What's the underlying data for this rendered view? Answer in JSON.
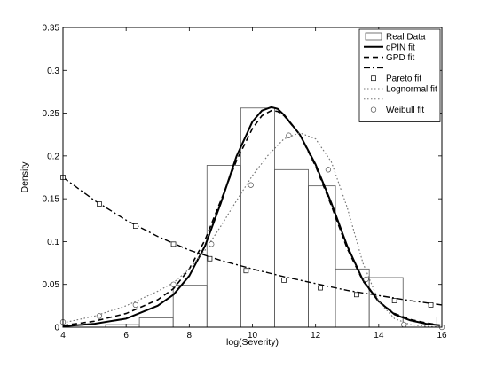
{
  "chart_data": {
    "type": "line",
    "title": "",
    "xlabel": "log(Severity)",
    "ylabel": "Density",
    "xlim": [
      4,
      16
    ],
    "ylim": [
      0,
      0.35
    ],
    "xticks": [
      "4",
      "6",
      "8",
      "10",
      "12",
      "14",
      "16"
    ],
    "yticks": [
      "0",
      "0.05",
      "0.1",
      "0.15",
      "0.2",
      "0.25",
      "0.3",
      "0.35"
    ],
    "grid": false,
    "legend_position": "top-right",
    "histogram": {
      "name": "Real Data",
      "bins": [
        {
          "x0": 5.35,
          "x1": 6.42,
          "value": 0.003
        },
        {
          "x0": 6.42,
          "x1": 7.49,
          "value": 0.011
        },
        {
          "x0": 7.49,
          "x1": 8.56,
          "value": 0.049
        },
        {
          "x0": 8.56,
          "x1": 9.63,
          "value": 0.189
        },
        {
          "x0": 9.63,
          "x1": 10.7,
          "value": 0.256
        },
        {
          "x0": 10.7,
          "x1": 11.77,
          "value": 0.184
        },
        {
          "x0": 11.77,
          "x1": 12.63,
          "value": 0.165
        },
        {
          "x0": 12.63,
          "x1": 13.7,
          "value": 0.068
        },
        {
          "x0": 13.7,
          "x1": 14.77,
          "value": 0.058
        },
        {
          "x0": 14.77,
          "x1": 15.84,
          "value": 0.012
        }
      ]
    },
    "series": [
      {
        "name": "dPIN fit",
        "style": "solid",
        "x": [
          4,
          5,
          6,
          7,
          7.5,
          8,
          8.5,
          9,
          9.5,
          10,
          10.3,
          10.6,
          10.8,
          11,
          11.5,
          12,
          12.5,
          13,
          13.5,
          14,
          14.5,
          15,
          15.5,
          16
        ],
        "y": [
          0.001,
          0.004,
          0.01,
          0.025,
          0.038,
          0.06,
          0.095,
          0.145,
          0.2,
          0.24,
          0.253,
          0.257,
          0.255,
          0.248,
          0.225,
          0.19,
          0.145,
          0.095,
          0.055,
          0.03,
          0.015,
          0.008,
          0.004,
          0.002
        ]
      },
      {
        "name": "GPD fit",
        "style": "dashed",
        "x": [
          4,
          5,
          6,
          7,
          7.5,
          8,
          8.5,
          9,
          9.5,
          10,
          10.3,
          10.6,
          10.8,
          11,
          11.5,
          12,
          12.5,
          13,
          13.5,
          14,
          14.5,
          15,
          15.5,
          16
        ],
        "y": [
          0.002,
          0.007,
          0.016,
          0.032,
          0.045,
          0.068,
          0.102,
          0.148,
          0.195,
          0.232,
          0.247,
          0.253,
          0.252,
          0.247,
          0.225,
          0.188,
          0.142,
          0.092,
          0.054,
          0.03,
          0.016,
          0.009,
          0.005,
          0.002
        ]
      },
      {
        "name": "",
        "style": "dashdot",
        "x": [
          4,
          5,
          6,
          7,
          8,
          9,
          10,
          11,
          12,
          13,
          14,
          15,
          16
        ],
        "y": [
          0.175,
          0.148,
          0.125,
          0.106,
          0.09,
          0.078,
          0.068,
          0.059,
          0.051,
          0.043,
          0.037,
          0.031,
          0.026
        ]
      },
      {
        "name": "Pareto fit",
        "style": "markers-square",
        "x": [
          4,
          5.15,
          6.3,
          7.5,
          8.65,
          9.8,
          11,
          12.15,
          13.3,
          14.5,
          15.65
        ],
        "y": [
          0.175,
          0.144,
          0.118,
          0.097,
          0.08,
          0.066,
          0.055,
          0.046,
          0.038,
          0.031,
          0.026
        ]
      },
      {
        "name": "Lognormal fit",
        "style": "dotted",
        "x": [
          4,
          5,
          6,
          7,
          7.5,
          8,
          8.5,
          9,
          9.5,
          10,
          10.5,
          11,
          11.5,
          12,
          12.5,
          13,
          13.5,
          14,
          14.5,
          15,
          15.5,
          16
        ],
        "y": [
          0.005,
          0.013,
          0.025,
          0.042,
          0.052,
          0.068,
          0.09,
          0.118,
          0.148,
          0.177,
          0.201,
          0.22,
          0.227,
          0.22,
          0.193,
          0.14,
          0.075,
          0.03,
          0.01,
          0.003,
          0.001,
          0.0
        ]
      },
      {
        "name": "",
        "style": "dotted",
        "x": [
          4,
          5,
          6,
          7,
          7.5,
          8,
          8.5,
          9,
          9.5,
          10,
          10.5,
          11,
          11.5,
          12,
          12.5,
          13,
          13.5,
          14,
          14.5,
          15,
          15.5,
          16
        ],
        "y": [
          0.005,
          0.013,
          0.025,
          0.042,
          0.052,
          0.068,
          0.09,
          0.118,
          0.148,
          0.177,
          0.201,
          0.22,
          0.227,
          0.22,
          0.193,
          0.14,
          0.075,
          0.03,
          0.01,
          0.003,
          0.001,
          0.0
        ]
      },
      {
        "name": "Weibull fit",
        "style": "markers-circle",
        "x": [
          4,
          5.15,
          6.3,
          7.5,
          8.7,
          9.95,
          11.15,
          12.4,
          13.6,
          14.8,
          16
        ],
        "y": [
          0.006,
          0.013,
          0.026,
          0.05,
          0.097,
          0.166,
          0.224,
          0.184,
          0.056,
          0.003,
          0.0
        ]
      }
    ]
  }
}
